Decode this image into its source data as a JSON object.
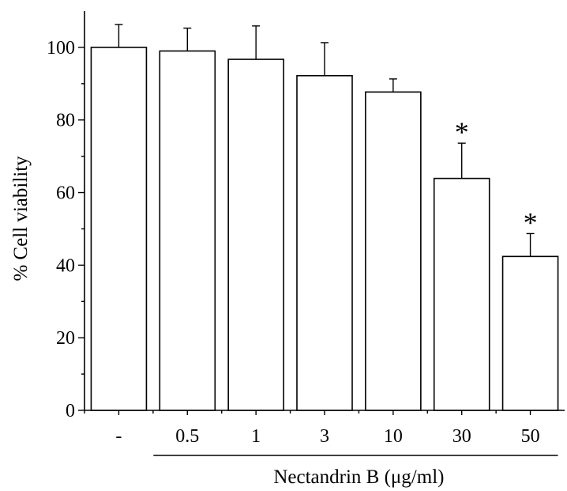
{
  "chart_data": {
    "type": "bar",
    "title": "",
    "ylabel": "% Cell viability",
    "xlabel": "Nectandrin B (μg/ml)",
    "categories": [
      "-",
      "0.5",
      "1",
      "3",
      "10",
      "30",
      "50"
    ],
    "values": [
      100,
      99,
      96.7,
      92.2,
      87.7,
      63.9,
      42.4
    ],
    "error_plus": [
      6.3,
      6.3,
      9.2,
      9.1,
      3.6,
      9.7,
      6.3
    ],
    "significance": [
      "",
      "",
      "",
      "",
      "",
      "*",
      "*"
    ],
    "ylim": [
      0,
      110
    ],
    "yticks": [
      0,
      20,
      40,
      60,
      80,
      100
    ],
    "grid": false,
    "group_bracket": {
      "from_category": 1,
      "to_category": 6
    }
  }
}
